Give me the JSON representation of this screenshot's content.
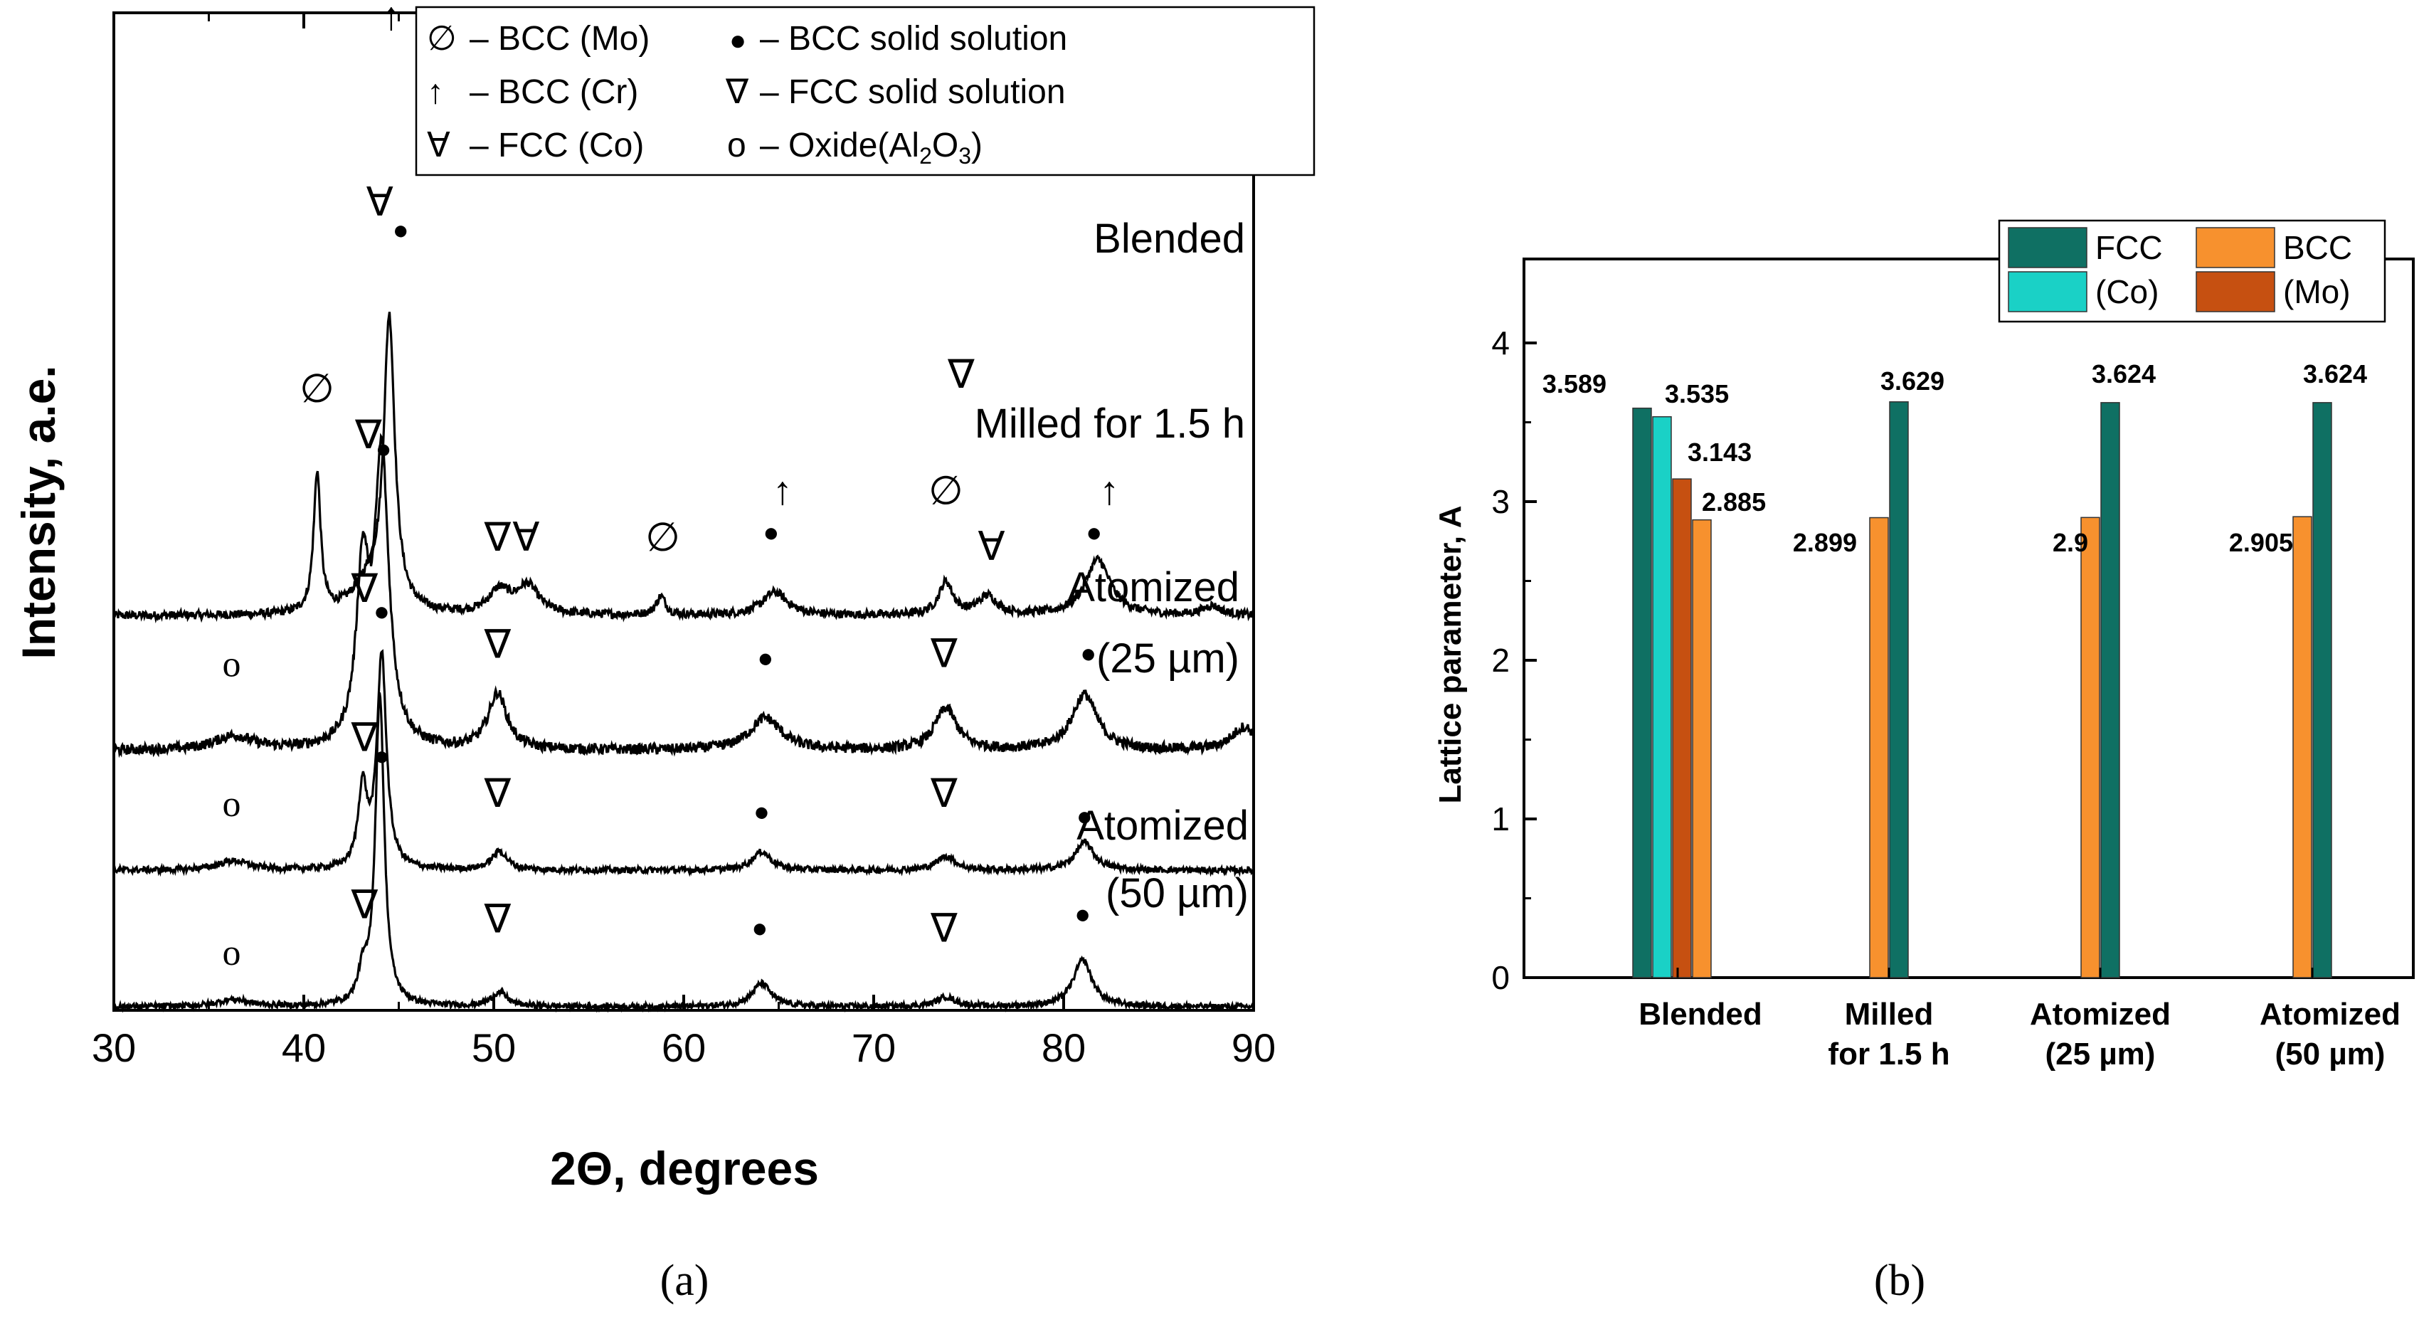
{
  "chart_data": [
    {
      "type": "line",
      "panel_label": "(a)",
      "xlabel": "2Θ, degrees",
      "ylabel": "Intensity, a.e.",
      "xlim": [
        30,
        90
      ],
      "xticks": [
        "30",
        "40",
        "50",
        "60",
        "70",
        "80",
        "90"
      ],
      "legend": {
        "position": "top",
        "entries": [
          {
            "symbol": "∅",
            "text": "– BCC (Mo)"
          },
          {
            "symbol": "●",
            "text": "– BCC solid solution"
          },
          {
            "symbol": "↑",
            "text": "– BCC (Cr)"
          },
          {
            "symbol": "∇",
            "text": "– FCC solid solution"
          },
          {
            "symbol": "∀",
            "text": "– FCC (Co)"
          },
          {
            "symbol": "o",
            "text": "– Oxide(Al",
            "sub1": "2",
            "mid": "O",
            "sub2": "3",
            "end": ")"
          }
        ]
      },
      "series": [
        {
          "name": "Blended",
          "label_lines": [
            "Blended"
          ],
          "baseline": 0.84,
          "noise": 0.018,
          "peaks": [
            [
              40.7,
              0.3,
              0.22
            ],
            [
              43.4,
              0.06,
              1.0
            ],
            [
              44.5,
              0.62,
              0.35
            ],
            [
              50.3,
              0.05,
              0.7
            ],
            [
              51.8,
              0.06,
              0.7
            ],
            [
              58.8,
              0.04,
              0.3
            ],
            [
              64.8,
              0.05,
              0.8
            ],
            [
              73.8,
              0.07,
              0.45
            ],
            [
              76.0,
              0.04,
              0.6
            ],
            [
              81.8,
              0.12,
              0.8
            ],
            [
              87.8,
              0.02,
              0.6
            ]
          ],
          "markers": [
            {
              "x": 40.7,
              "y": 1.3,
              "symbol": "∅"
            },
            {
              "x": 43.4,
              "y": 1.2,
              "symbol": "∇"
            },
            {
              "x": 44.0,
              "y": 1.7,
              "symbol": "∀"
            },
            {
              "x": 44.6,
              "y": 2.1,
              "symbol": "↑"
            },
            {
              "x": 45.1,
              "y": 1.65,
              "symbol": "●"
            },
            {
              "x": 50.2,
              "y": 0.98,
              "symbol": "∇"
            },
            {
              "x": 51.7,
              "y": 0.98,
              "symbol": "∀"
            },
            {
              "x": 58.9,
              "y": 0.98,
              "symbol": "∅"
            },
            {
              "x": 64.6,
              "y": 1.0,
              "symbol": "●"
            },
            {
              "x": 65.2,
              "y": 1.08,
              "symbol": "↑"
            },
            {
              "x": 73.8,
              "y": 1.08,
              "symbol": "∅"
            },
            {
              "x": 74.6,
              "y": 1.33,
              "symbol": "∇"
            },
            {
              "x": 76.2,
              "y": 0.96,
              "symbol": "∀"
            },
            {
              "x": 81.6,
              "y": 1.0,
              "symbol": "●"
            },
            {
              "x": 82.4,
              "y": 1.08,
              "symbol": "↑"
            }
          ]
        },
        {
          "name": "Milled for 1.5 h",
          "label_lines": [
            "Milled for 1.5 h"
          ],
          "baseline": 0.55,
          "noise": 0.022,
          "peaks": [
            [
              36.3,
              0.03,
              1.2
            ],
            [
              43.1,
              0.36,
              0.4
            ],
            [
              44.1,
              0.62,
              0.45
            ],
            [
              50.2,
              0.12,
              0.6
            ],
            [
              64.3,
              0.07,
              1.0
            ],
            [
              73.8,
              0.09,
              0.7
            ],
            [
              81.1,
              0.12,
              0.8
            ],
            [
              89.5,
              0.05,
              0.8
            ]
          ],
          "markers": [
            {
              "x": 36.2,
              "y": 0.71,
              "symbol": "o"
            },
            {
              "x": 43.2,
              "y": 0.87,
              "symbol": "∇"
            },
            {
              "x": 44.2,
              "y": 1.18,
              "symbol": "●"
            },
            {
              "x": 50.2,
              "y": 0.75,
              "symbol": "∇"
            },
            {
              "x": 64.3,
              "y": 0.73,
              "symbol": "●"
            },
            {
              "x": 73.7,
              "y": 0.73,
              "symbol": "∇"
            },
            {
              "x": 81.3,
              "y": 0.74,
              "symbol": "●"
            }
          ]
        },
        {
          "name": "Atomized (25 µm)",
          "label_lines": [
            "Atomized",
            "(25 µm)"
          ],
          "baseline": 0.293,
          "noise": 0.013,
          "peaks": [
            [
              36.3,
              0.02,
              1.0
            ],
            [
              43.1,
              0.17,
              0.28
            ],
            [
              44.1,
              0.46,
              0.3
            ],
            [
              50.3,
              0.04,
              0.5
            ],
            [
              64.1,
              0.04,
              0.6
            ],
            [
              73.8,
              0.03,
              0.6
            ],
            [
              81.1,
              0.06,
              0.6
            ]
          ],
          "markers": [
            {
              "x": 36.2,
              "y": 0.41,
              "symbol": "o"
            },
            {
              "x": 43.2,
              "y": 0.55,
              "symbol": "∇"
            },
            {
              "x": 44.1,
              "y": 0.83,
              "symbol": "●"
            },
            {
              "x": 50.2,
              "y": 0.43,
              "symbol": "∇"
            },
            {
              "x": 64.1,
              "y": 0.4,
              "symbol": "●"
            },
            {
              "x": 73.7,
              "y": 0.43,
              "symbol": "∇"
            },
            {
              "x": 81.1,
              "y": 0.39,
              "symbol": "●"
            }
          ]
        },
        {
          "name": "Atomized (50 µm)",
          "label_lines": [
            "Atomized",
            "(50 µm)"
          ],
          "baseline": 0.0,
          "noise": 0.012,
          "peaks": [
            [
              36.3,
              0.015,
              1.0
            ],
            [
              43.1,
              0.06,
              0.28
            ],
            [
              44.0,
              0.67,
              0.28
            ],
            [
              50.3,
              0.03,
              0.5
            ],
            [
              64.1,
              0.05,
              0.6
            ],
            [
              73.8,
              0.02,
              0.6
            ],
            [
              81.0,
              0.1,
              0.6
            ]
          ],
          "markers": [
            {
              "x": 36.2,
              "y": 0.09,
              "symbol": "o"
            },
            {
              "x": 43.2,
              "y": 0.19,
              "symbol": "∇"
            },
            {
              "x": 44.1,
              "y": 0.52,
              "symbol": "●"
            },
            {
              "x": 50.2,
              "y": 0.16,
              "symbol": "∇"
            },
            {
              "x": 64.0,
              "y": 0.15,
              "symbol": "●"
            },
            {
              "x": 73.7,
              "y": 0.14,
              "symbol": "∇"
            },
            {
              "x": 81.0,
              "y": 0.18,
              "symbol": "●"
            }
          ]
        }
      ]
    },
    {
      "type": "bar",
      "panel_label": "(b)",
      "xlabel": "",
      "ylabel": "Lattice parameter, A",
      "ylim": [
        0,
        4.5
      ],
      "yticks": [
        "0",
        "1",
        "2",
        "3",
        "4"
      ],
      "categories": [
        {
          "name": "Blended",
          "lines": [
            "Blended"
          ]
        },
        {
          "name": "Milled for 1.5 h",
          "lines": [
            "Milled",
            "for 1.5 h"
          ]
        },
        {
          "name": "Atomized (25 µm)",
          "lines": [
            "Atomized",
            "(25 µm)"
          ]
        },
        {
          "name": "Atomized (50 µm)",
          "lines": [
            "Atomized",
            "(50 µm)"
          ]
        }
      ],
      "legend": {
        "position": "top-right",
        "order": [
          "FCC",
          "BCC",
          "(Co)",
          "(Mo)"
        ]
      },
      "series": [
        {
          "name": "FCC",
          "color": "#0f7063"
        },
        {
          "name": "(Co)",
          "color": "#1ad1c6"
        },
        {
          "name": "(Mo)",
          "color": "#c65011"
        },
        {
          "name": "BCC",
          "color": "#f7912e"
        }
      ],
      "bars": [
        {
          "category": 0,
          "series": "FCC",
          "value": 3.589,
          "label": "3.589"
        },
        {
          "category": 0,
          "series": "(Co)",
          "value": 3.535,
          "label": "3.535"
        },
        {
          "category": 0,
          "series": "(Mo)",
          "value": 3.143,
          "label": "3.143"
        },
        {
          "category": 0,
          "series": "BCC",
          "value": 2.885,
          "label": "2.885"
        },
        {
          "category": 1,
          "series": "BCC",
          "value": 2.899,
          "label": "2.899"
        },
        {
          "category": 1,
          "series": "FCC",
          "value": 3.629,
          "label": "3.629"
        },
        {
          "category": 2,
          "series": "BCC",
          "value": 2.9,
          "label": "2.9"
        },
        {
          "category": 2,
          "series": "FCC",
          "value": 3.624,
          "label": "3.624"
        },
        {
          "category": 3,
          "series": "BCC",
          "value": 2.905,
          "label": "2.905"
        },
        {
          "category": 3,
          "series": "FCC",
          "value": 3.624,
          "label": "3.624"
        }
      ]
    }
  ]
}
